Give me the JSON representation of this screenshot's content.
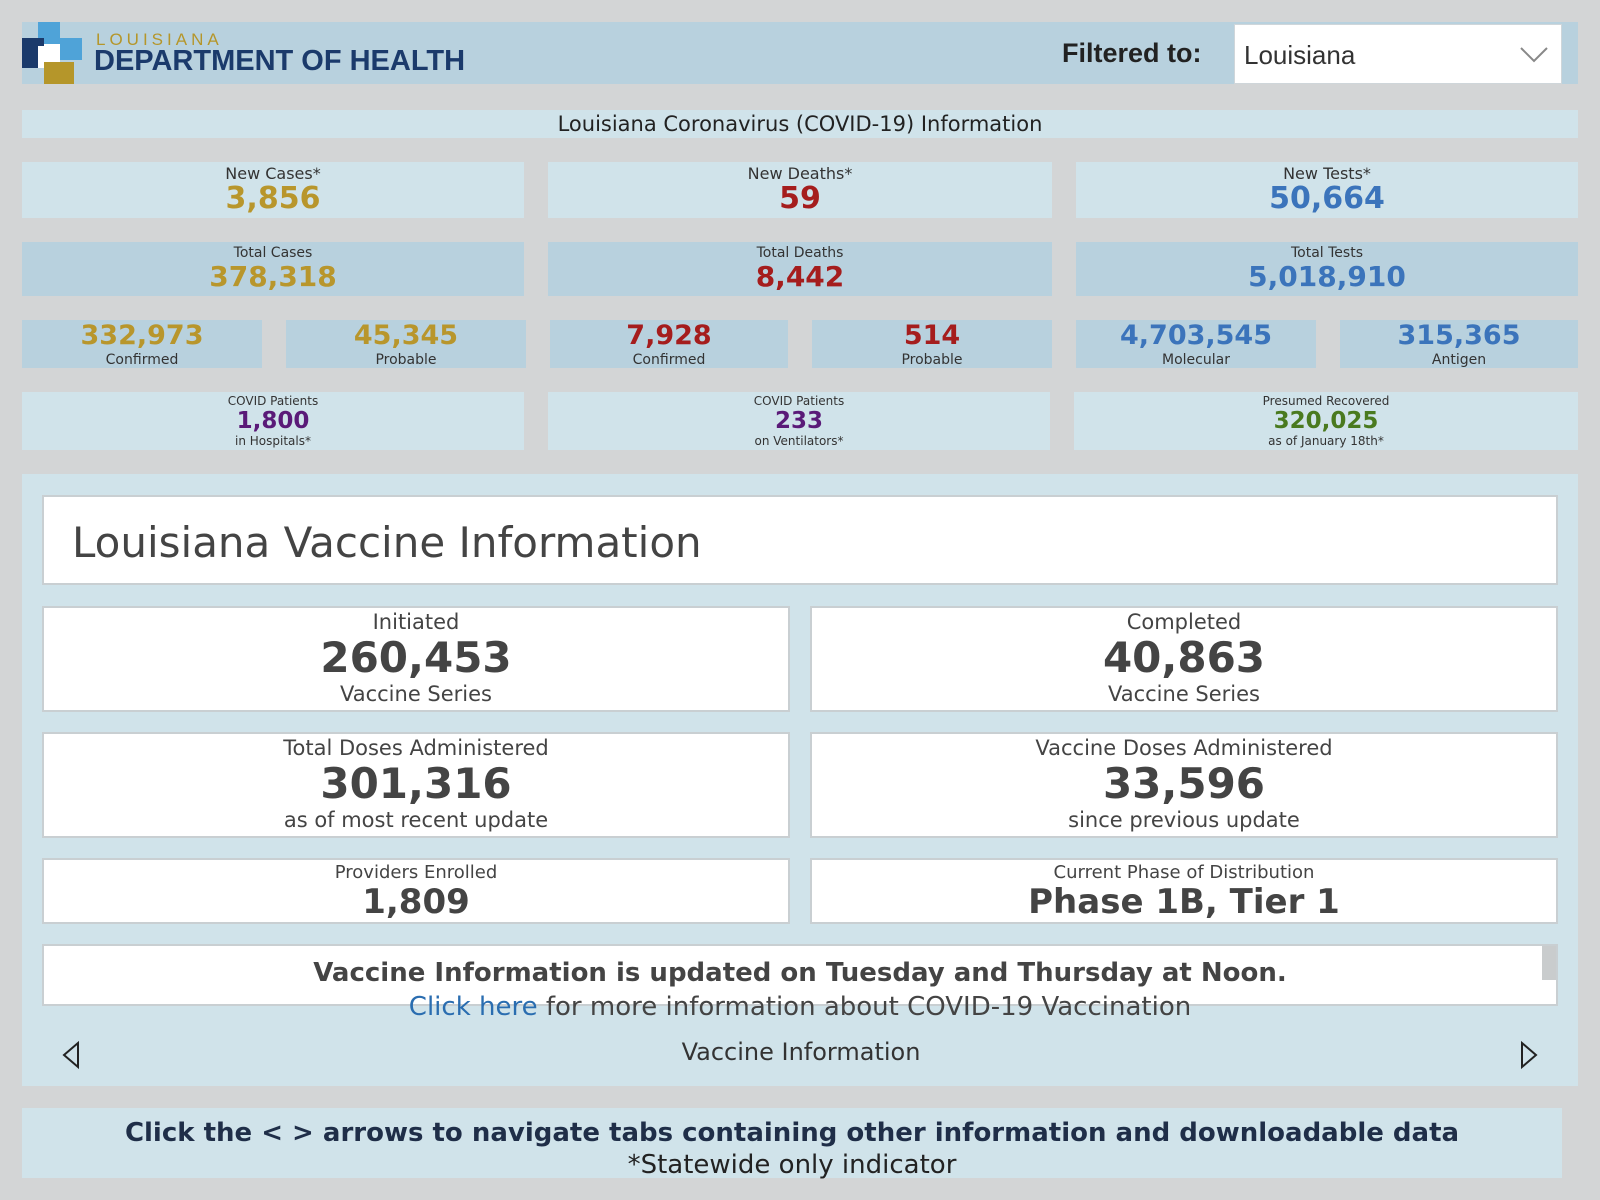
{
  "header": {
    "logo_top": "LOUISIANA",
    "logo_main": "DEPARTMENT OF HEALTH",
    "filter_label": "Filtered to:",
    "filter_value": "Louisiana"
  },
  "title": "Louisiana Coronavirus (COVID-19) Information",
  "new_cases": {
    "label": "New Cases*",
    "value": "3,856"
  },
  "new_deaths": {
    "label": "New Deaths*",
    "value": "59"
  },
  "new_tests": {
    "label": "New Tests*",
    "value": "50,664"
  },
  "total_cases": {
    "label": "Total Cases",
    "value": "378,318"
  },
  "total_deaths": {
    "label": "Total Deaths",
    "value": "8,442"
  },
  "total_tests": {
    "label": "Total Tests",
    "value": "5,018,910"
  },
  "cases_confirmed": {
    "value": "332,973",
    "label": "Confirmed"
  },
  "cases_probable": {
    "value": "45,345",
    "label": "Probable"
  },
  "deaths_confirmed": {
    "value": "7,928",
    "label": "Confirmed"
  },
  "deaths_probable": {
    "value": "514",
    "label": "Probable"
  },
  "tests_molecular": {
    "value": "4,703,545",
    "label": "Molecular"
  },
  "tests_antigen": {
    "value": "315,365",
    "label": "Antigen"
  },
  "hospitals": {
    "top": "COVID Patients",
    "value": "1,800",
    "bottom": "in Hospitals*"
  },
  "ventilators": {
    "top": "COVID Patients",
    "value": "233",
    "bottom": "on Ventilators*"
  },
  "recovered": {
    "top": "Presumed Recovered",
    "value": "320,025",
    "bottom": "as of January 18th*"
  },
  "vaccine": {
    "title": "Louisiana Vaccine Information",
    "initiated": {
      "top": "Initiated",
      "value": "260,453",
      "bottom": "Vaccine Series"
    },
    "completed": {
      "top": "Completed",
      "value": "40,863",
      "bottom": "Vaccine Series"
    },
    "total_doses": {
      "top": "Total Doses Administered",
      "value": "301,316",
      "bottom": "as of most recent update"
    },
    "doses_since": {
      "top": "Vaccine Doses Administered",
      "value": "33,596",
      "bottom": "since previous update"
    },
    "providers": {
      "top": "Providers Enrolled",
      "value": "1,809"
    },
    "phase": {
      "top": "Current Phase of Distribution",
      "value": "Phase 1B, Tier 1"
    },
    "notice": "Vaccine Information is updated on Tuesday and Thursday at Noon.",
    "notice_link": "Click here",
    "notice_rest": " for more information about COVID-19 Vaccination",
    "tab_label": "Vaccine Information"
  },
  "footer": {
    "main": "Click the < > arrows to navigate tabs containing other information and downloadable data",
    "sub": "*Statewide only indicator"
  },
  "colors": {
    "cases": "#b8962c",
    "deaths": "#a51d1d",
    "tests": "#3b74bb",
    "hospital": "#5a1a78",
    "recovered": "#4a7a1f",
    "panel_bg": "#d0e3ea"
  }
}
